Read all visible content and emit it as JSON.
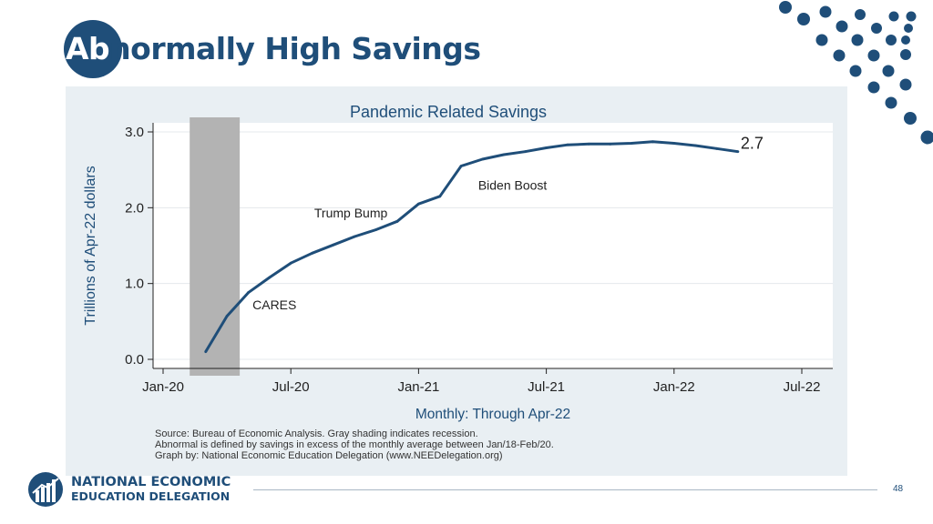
{
  "slide": {
    "title_prefix": "Ab",
    "title_rest": "normally High Savings",
    "page_number": "48",
    "org_line1": "NATIONAL ECONOMIC",
    "org_line2": "EDUCATION DELEGATION"
  },
  "colors": {
    "brand_blue": "#1f4e79",
    "line": "#1f4e79",
    "recession": "#b3b3b3",
    "panel_bg": "#e9eff3"
  },
  "chart_data": {
    "type": "line",
    "title": "Pandemic Related Savings",
    "xlabel": "Monthly: Through Apr-22",
    "ylabel": "Trillions of Apr-22 dollars",
    "ylim": [
      0,
      3.0
    ],
    "yticks": [
      0.0,
      1.0,
      2.0,
      3.0
    ],
    "ytick_labels": [
      "0.0",
      "1.0",
      "2.0",
      "3.0"
    ],
    "xlim": [
      0,
      30
    ],
    "xticks": [
      0,
      6,
      12,
      18,
      24,
      30
    ],
    "xtick_labels": [
      "Jan-20",
      "Jul-20",
      "Jan-21",
      "Jul-21",
      "Jan-22",
      "Jul-22"
    ],
    "grid": true,
    "recession": [
      1.25,
      3.6
    ],
    "series": [
      {
        "name": "Pandemic Related Savings",
        "x": [
          2,
          3,
          4,
          5,
          6,
          7,
          8,
          9,
          10,
          11,
          12,
          13,
          14,
          15,
          16,
          17,
          18,
          19,
          20,
          21,
          22,
          23,
          24,
          25,
          26,
          27
        ],
        "values": [
          0.1,
          0.57,
          0.88,
          1.08,
          1.27,
          1.4,
          1.51,
          1.62,
          1.71,
          1.82,
          2.05,
          2.15,
          2.55,
          2.64,
          2.7,
          2.74,
          2.79,
          2.83,
          2.84,
          2.84,
          2.85,
          2.87,
          2.85,
          2.82,
          2.78,
          2.74
        ]
      }
    ],
    "end_label": "2.7",
    "annotations": [
      {
        "text": "CARES",
        "x": 4.2,
        "y": 0.72
      },
      {
        "text": "Trump Bump",
        "x": 7.1,
        "y": 1.93
      },
      {
        "text": "Biden Boost",
        "x": 14.8,
        "y": 2.3
      }
    ],
    "source_lines": [
      "Source: Bureau of Economic Analysis. Gray shading indicates recession.",
      "Abnormal is defined by savings in excess of the monthly average between Jan/18-Feb/20.",
      "Graph by: National Economic Education Delegation (www.NEEDelegation.org)"
    ]
  }
}
